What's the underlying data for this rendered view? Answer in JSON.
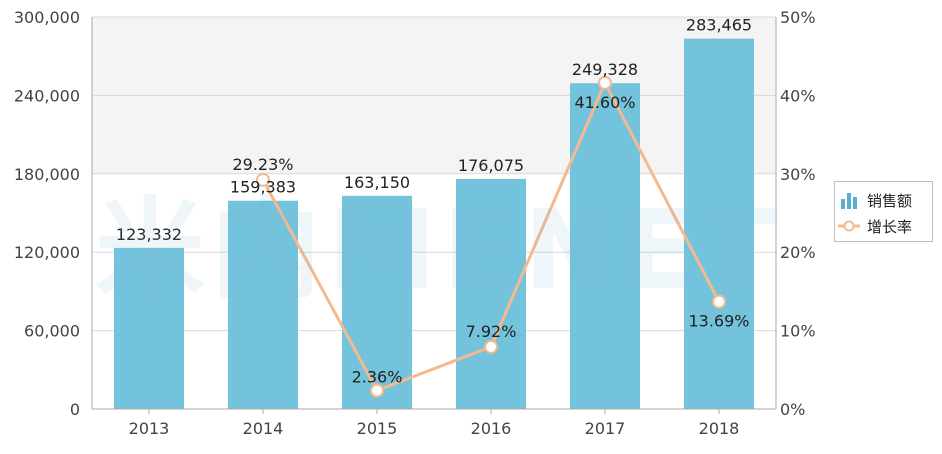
{
  "chart_data": {
    "type": "bar",
    "categories": [
      "2013",
      "2014",
      "2015",
      "2016",
      "2017",
      "2018"
    ],
    "series": [
      {
        "name": "销售额",
        "type": "bar",
        "axis": "left",
        "values": [
          123332,
          159383,
          163150,
          176075,
          249328,
          283465
        ],
        "labels": [
          "123,332",
          "159,383",
          "163,150",
          "176,075",
          "249,328",
          "283,465"
        ],
        "color": "#74c3dc"
      },
      {
        "name": "增长率",
        "type": "line",
        "axis": "right",
        "values": [
          null,
          29.23,
          2.36,
          7.92,
          41.6,
          13.69
        ],
        "labels": [
          "",
          "29.23%",
          "2.36%",
          "7.92%",
          "41.60%",
          "13.69%"
        ],
        "color": "#f5b98f"
      }
    ],
    "y_left": {
      "ylim": [
        0,
        300000
      ],
      "ticks": [
        "0",
        "60,000",
        "120,000",
        "180,000",
        "240,000",
        "300,000"
      ]
    },
    "y_right": {
      "ylim": [
        0,
        50
      ],
      "ticks": [
        "0%",
        "10%",
        "20%",
        "30%",
        "40%",
        "50%"
      ]
    },
    "grid": true,
    "legend": "right",
    "watermark": "米内MENET"
  }
}
